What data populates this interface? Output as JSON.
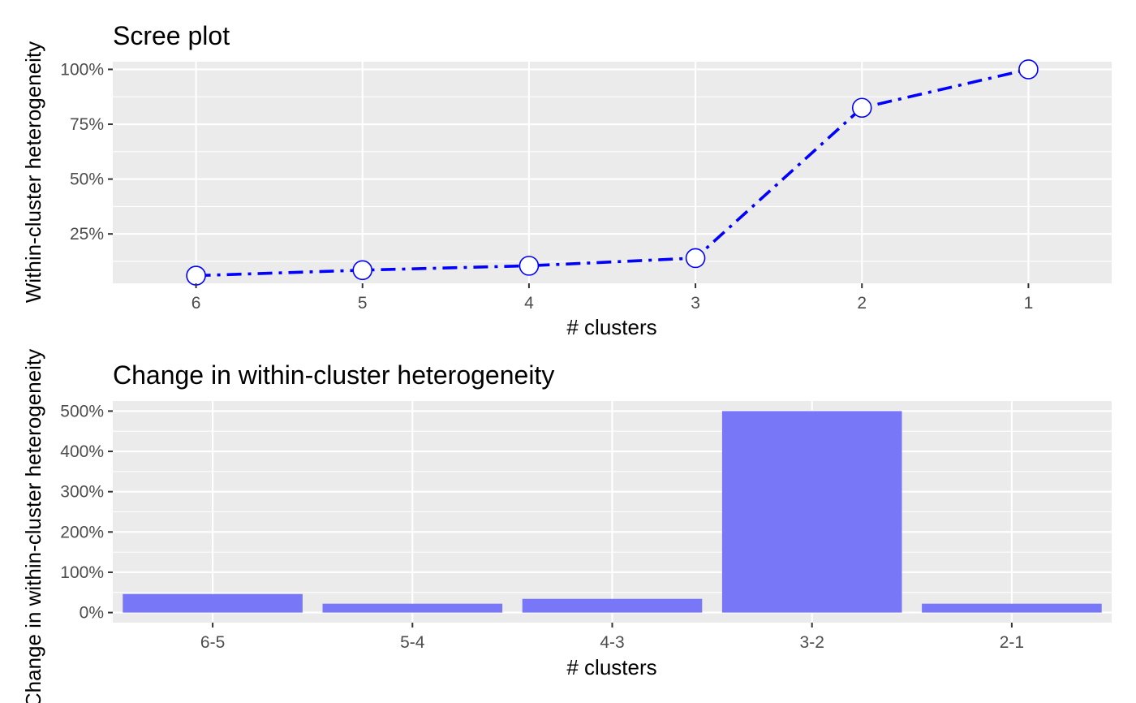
{
  "colors": {
    "line": "#0000ff",
    "bar": "#7777f7",
    "point_fill": "#ffffff",
    "panel": "#ebebeb"
  },
  "chart_data": [
    {
      "type": "line",
      "title": "Scree plot",
      "xlabel": "# clusters",
      "ylabel": "Within-cluster heterogeneity",
      "categories": [
        "6",
        "5",
        "4",
        "3",
        "2",
        "1"
      ],
      "values": [
        6,
        8.5,
        10.5,
        14,
        82.5,
        100
      ],
      "y_ticks": [
        25,
        50,
        75,
        100
      ],
      "y_tick_labels": [
        "25%",
        "50%",
        "75%",
        "100%"
      ],
      "ylim": [
        2.5,
        103.5
      ],
      "line_style": "dash-dot",
      "grid": true
    },
    {
      "type": "bar",
      "title": "Change in within-cluster heterogeneity",
      "xlabel": "# clusters",
      "ylabel": "Change in within-cluster heterogeneity",
      "categories": [
        "6-5",
        "5-4",
        "4-3",
        "3-2",
        "2-1"
      ],
      "values": [
        46,
        22,
        34,
        500,
        22
      ],
      "y_ticks": [
        0,
        100,
        200,
        300,
        400,
        500
      ],
      "y_tick_labels": [
        "0%",
        "100%",
        "200%",
        "300%",
        "400%",
        "500%"
      ],
      "ylim": [
        -25,
        525
      ],
      "grid": true
    }
  ]
}
